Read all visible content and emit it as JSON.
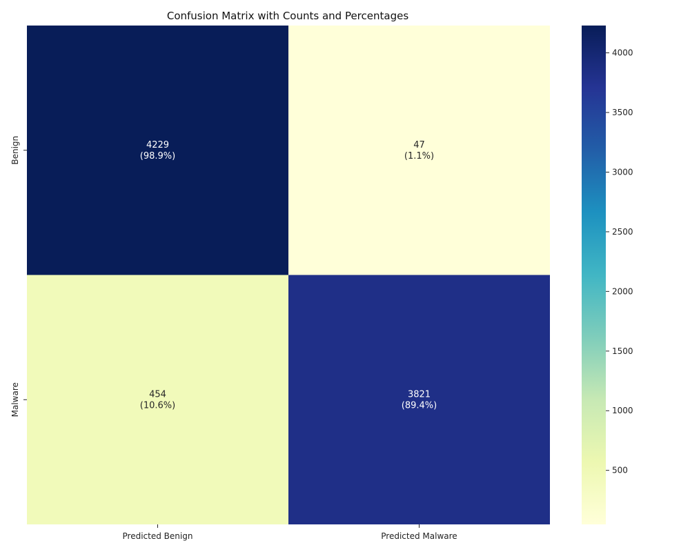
{
  "chart_data": {
    "type": "heatmap",
    "title": "Confusion Matrix with Counts and Percentages",
    "xlabel": "",
    "ylabel": "",
    "x_categories": [
      "Predicted Benign",
      "Predicted Malware"
    ],
    "y_categories": [
      "Benign",
      "Malware"
    ],
    "values": [
      [
        4229,
        47
      ],
      [
        454,
        3821
      ]
    ],
    "cell_labels": [
      [
        "4229",
        "(98.9%)",
        "47",
        "(1.1%)"
      ],
      [
        "454",
        "(10.6%)",
        "3821",
        "(89.4%)"
      ]
    ],
    "row_percentages": [
      [
        98.9,
        1.1
      ],
      [
        10.6,
        89.4
      ]
    ],
    "colormap": "YlGnBu",
    "colorbar_range": [
      47,
      4229
    ],
    "colorbar_ticks": [
      500,
      1000,
      1500,
      2000,
      2500,
      3000,
      3500,
      4000
    ],
    "grid": false
  }
}
